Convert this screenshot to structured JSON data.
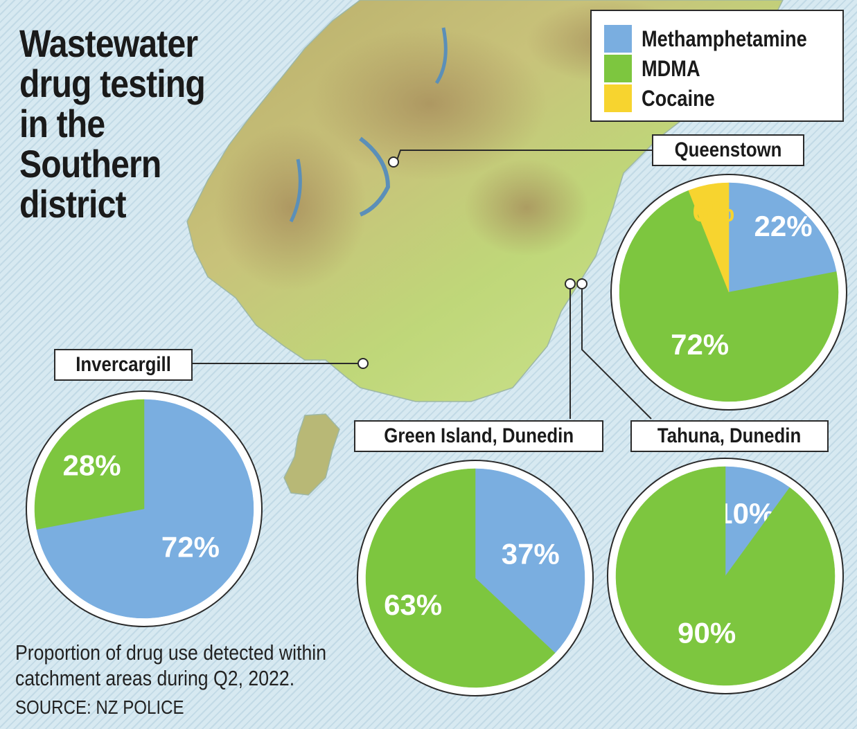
{
  "title": "Wastewater drug testing in the Southern district",
  "legend": [
    {
      "label": "Methamphetamine",
      "color": "#7aaee0"
    },
    {
      "label": "MDMA",
      "color": "#7dc63f"
    },
    {
      "label": "Cocaine",
      "color": "#f7d42f"
    }
  ],
  "note": "Proportion of drug use detected within catchment areas during Q2, 2022.",
  "source": "SOURCE: NZ POLICE",
  "chart_data": [
    {
      "type": "pie",
      "title": "Queenstown",
      "slices": [
        {
          "name": "Methamphetamine",
          "value": 22,
          "label": "22%"
        },
        {
          "name": "MDMA",
          "value": 72,
          "label": "72%"
        },
        {
          "name": "Cocaine",
          "value": 6,
          "label": "6%"
        }
      ]
    },
    {
      "type": "pie",
      "title": "Invercargill",
      "slices": [
        {
          "name": "Methamphetamine",
          "value": 72,
          "label": "72%"
        },
        {
          "name": "MDMA",
          "value": 28,
          "label": "28%"
        }
      ]
    },
    {
      "type": "pie",
      "title": "Green Island, Dunedin",
      "slices": [
        {
          "name": "Methamphetamine",
          "value": 37,
          "label": "37%"
        },
        {
          "name": "MDMA",
          "value": 63,
          "label": "63%"
        }
      ]
    },
    {
      "type": "pie",
      "title": "Tahuna, Dunedin",
      "slices": [
        {
          "name": "Methamphetamine",
          "value": 10,
          "label": "10%"
        },
        {
          "name": "MDMA",
          "value": 90,
          "label": "90%"
        }
      ]
    }
  ]
}
